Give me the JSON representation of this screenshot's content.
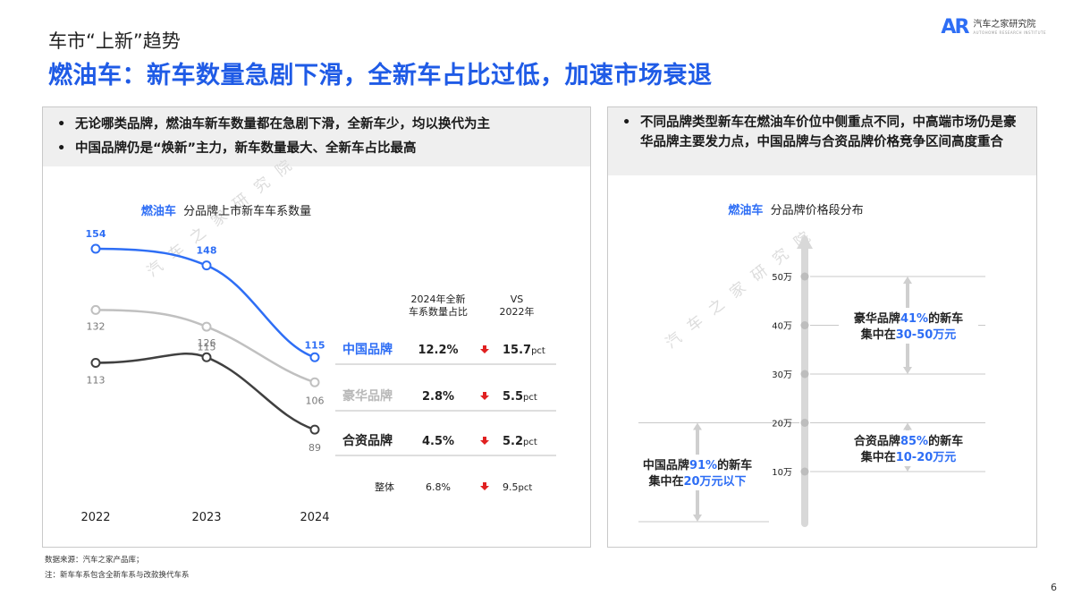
{
  "header": {
    "section_label": "车市“上新”趋势",
    "title": "燃油车：新车数量急剧下滑，全新车占比过低，加速市场衰退"
  },
  "logo": {
    "name": "汽车之家研究院",
    "mark": "AR",
    "subtitle": "AUTOHOME RESEARCH INSTITUTE",
    "brand_color": "#2e6ef5"
  },
  "watermark": "汽 车 之 家 研 究 院",
  "left_panel": {
    "bullets": [
      "无论哪类品牌，燃油车新车数量都在急剧下滑，全新车少，均以换代为主",
      "中国品牌仍是“焕新”主力，新车数量最大、全新车占比最高"
    ]
  },
  "right_panel": {
    "bullets": [
      "不同品牌类型新车在燃油车价位中侧重点不同，中高端市场仍是豪华品牌主要发力点，中国品牌与合资品牌价格竞争区间高度重合"
    ]
  },
  "chart_data": [
    {
      "type": "line",
      "title_prefix": "燃油车",
      "title": "分品牌上市新车车系数量",
      "x": [
        "2022",
        "2023",
        "2024"
      ],
      "series": [
        {
          "name": "中国品牌",
          "values": [
            154,
            148,
            115
          ],
          "color": "#2e6ef5",
          "labels": [
            "154",
            "148",
            "115"
          ]
        },
        {
          "name": "豪华品牌",
          "values": [
            132,
            126,
            106
          ],
          "color": "#c0c0c0",
          "labels": [
            "132",
            "126",
            "106"
          ]
        },
        {
          "name": "合资品牌",
          "values": [
            113,
            115,
            89
          ],
          "color": "#404040",
          "labels": [
            "113",
            "115",
            "89"
          ]
        }
      ],
      "grid": false,
      "table": {
        "headers": [
          "2024年全新\n车系数量占比",
          "VS\n2022年"
        ],
        "rows": [
          {
            "name": "中国品牌",
            "share": "12.2%",
            "change": "15.7",
            "unit": "pct",
            "name_color": "#2e6ef5"
          },
          {
            "name": "豪华品牌",
            "share": "2.8%",
            "change": "5.5",
            "unit": "pct",
            "name_color": "#b8b8b8"
          },
          {
            "name": "合资品牌",
            "share": "4.5%",
            "change": "5.2",
            "unit": "pct",
            "name_color": "#222222"
          },
          {
            "name": "整体",
            "share": "6.8%",
            "change": "9.5",
            "unit": "pct",
            "name_color": "#222222"
          }
        ],
        "arrow_color": "#e02020"
      }
    },
    {
      "type": "diagram",
      "title_prefix": "燃油车",
      "title": "分品牌价格段分布",
      "axis_ticks": [
        "10万",
        "20万",
        "30万",
        "40万",
        "50万"
      ],
      "ranges": [
        {
          "brand": "豪华品牌",
          "pct": "41%",
          "suffix": "的新车",
          "line2_prefix": "集中在",
          "range_text": "30-50万元",
          "from": 30,
          "to": 50
        },
        {
          "brand": "合资品牌",
          "pct": "85%",
          "suffix": "的新车",
          "line2_prefix": "集中在",
          "range_text": "10-20万元",
          "from": 10,
          "to": 20
        },
        {
          "brand": "中国品牌",
          "pct": "91%",
          "suffix": "的新车",
          "line2_prefix": "集中在",
          "range_text": "20万元以下",
          "from": 0,
          "to": 20
        }
      ],
      "highlight_color": "#2e6ef5"
    }
  ],
  "footnotes": [
    "数据来源：汽车之家产品库；",
    "注：新车车系包含全新车系与改款换代车系"
  ],
  "page_number": "6"
}
